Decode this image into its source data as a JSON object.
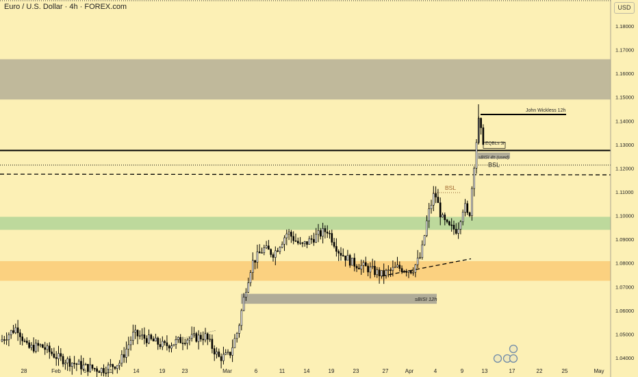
{
  "header": {
    "title": "Euro / U.S. Dollar · 4h · FOREX.com",
    "currency_button": "USD"
  },
  "colors": {
    "background": "#fcf0b5",
    "gray_zone": "#bdb59a",
    "green_zone": "#b9d79b",
    "orange_zone": "#fbcf7d",
    "candle": "#000000",
    "sbisi_box": "#b0ac98"
  },
  "chart_data": {
    "type": "candlestick",
    "symbol": "EURUSD",
    "timeframe": "4h",
    "ylim": [
      1.035,
      1.1875
    ],
    "y_ticks": [
      "1.18000",
      "1.17000",
      "1.16000",
      "1.15000",
      "1.14000",
      "1.13000",
      "1.12000",
      "1.11000",
      "1.10000",
      "1.09000",
      "1.08000",
      "1.07000",
      "1.06000",
      "1.05000",
      "1.04000"
    ],
    "x_labels": [
      "28",
      "Feb",
      "6",
      "11",
      "14",
      "19",
      "23",
      "Mar",
      "6",
      "11",
      "14",
      "19",
      "23",
      "27",
      "Apr",
      "4",
      "9",
      "13",
      "17",
      "22",
      "25",
      "May"
    ],
    "price_path": [
      [
        "28",
        1.047
      ],
      [
        "Feb",
        1.04
      ],
      [
        "6",
        1.038
      ],
      [
        "11",
        1.036
      ],
      [
        "14",
        1.048
      ],
      [
        "19",
        1.046
      ],
      [
        "23",
        1.048
      ],
      [
        "Mar",
        1.04
      ],
      [
        "6",
        1.08
      ],
      [
        "11",
        1.09
      ],
      [
        "14",
        1.088
      ],
      [
        "19",
        1.093
      ],
      [
        "23",
        1.082
      ],
      [
        "27",
        1.077
      ],
      [
        "Apr",
        1.08
      ],
      [
        "4",
        1.105
      ],
      [
        "9",
        1.092
      ],
      [
        "13",
        1.135
      ],
      [
        "13",
        1.131
      ]
    ],
    "zones": [
      {
        "name": "supply-gray",
        "range": [
          1.149,
          1.166
        ]
      },
      {
        "name": "green",
        "range": [
          1.094,
          1.0995
        ]
      },
      {
        "name": "orange",
        "range": [
          1.0725,
          1.0808
        ]
      },
      {
        "name": "sBISI 12h",
        "range": [
          1.0628,
          1.067
        ]
      }
    ],
    "lines": [
      {
        "name": "solid-level",
        "value": 1.1275
      },
      {
        "name": "dotted-level",
        "value": 1.1213
      },
      {
        "name": "dashed-level",
        "value": 1.1175
      },
      {
        "name": "John Wickless 12h",
        "value": 1.1427
      }
    ],
    "annotations": [
      "John Wickless 12h",
      "EQBLs 3h",
      "sBISI 4h (used)",
      "BSL",
      "BSL",
      "sBISI 12h"
    ]
  }
}
